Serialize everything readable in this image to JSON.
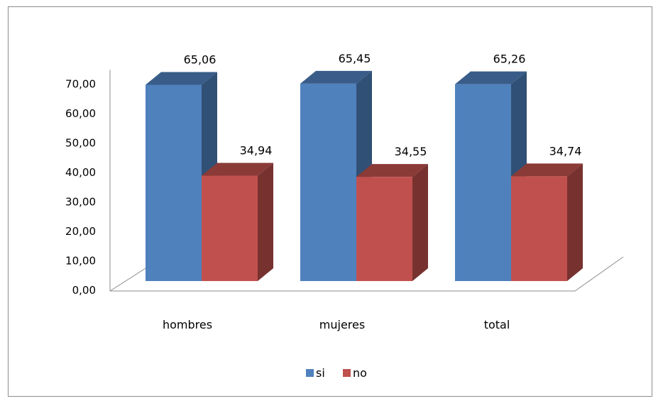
{
  "chart_data": {
    "type": "bar",
    "categories": [
      "hombres",
      "mujeres",
      "total"
    ],
    "series": [
      {
        "name": "si",
        "values": [
          65.06,
          65.45,
          65.26
        ],
        "labels": [
          "65,06",
          "65,45",
          "65,26"
        ],
        "color": "#4f81bd"
      },
      {
        "name": "no",
        "values": [
          34.94,
          34.55,
          34.74
        ],
        "labels": [
          "34,94",
          "34,55",
          "34,74"
        ],
        "color": "#c0504d"
      }
    ],
    "y_ticks": [
      "0,00",
      "10,00",
      "20,00",
      "30,00",
      "40,00",
      "50,00",
      "60,00",
      "70,00"
    ],
    "ylim": [
      0,
      70
    ],
    "legend_position": "bottom",
    "style": "3d-column"
  }
}
